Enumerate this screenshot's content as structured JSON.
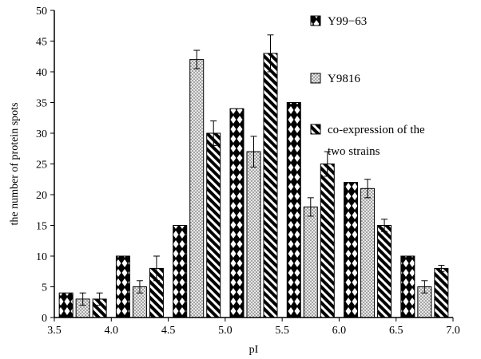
{
  "chart_data": {
    "type": "bar",
    "xlabel": "pI",
    "ylabel": "the number of protein spots",
    "xlim": [
      3.5,
      7.0
    ],
    "ylim": [
      0,
      50
    ],
    "x_ticks": [
      "3.5",
      "4.0",
      "4.5",
      "5.0",
      "5.5",
      "6.0",
      "6.5",
      "7.0"
    ],
    "y_ticks": [
      "0",
      "5",
      "10",
      "15",
      "20",
      "25",
      "30",
      "35",
      "40",
      "45",
      "50"
    ],
    "grid": false,
    "legend_position": "right",
    "groups": [
      3.75,
      4.25,
      4.75,
      5.25,
      5.75,
      6.25,
      6.75
    ],
    "series": [
      {
        "name": "Y99−63",
        "pattern": "diamond",
        "values": [
          4,
          10,
          15,
          34,
          35,
          22,
          10
        ],
        "errors": [
          0,
          0,
          0,
          0,
          0,
          0,
          0
        ]
      },
      {
        "name": "Y9816",
        "pattern": "dots",
        "values": [
          3,
          5,
          42,
          27,
          18,
          21,
          5
        ],
        "errors": [
          1,
          1,
          1.5,
          2.5,
          1.5,
          1.5,
          1
        ]
      },
      {
        "name": "co-expression of the two strains",
        "name_lines": [
          "co-expression of the",
          "two strains"
        ],
        "pattern": "diagonal",
        "values": [
          3,
          8,
          30,
          43,
          25,
          15,
          8
        ],
        "errors": [
          1,
          2,
          2,
          3,
          2,
          1,
          0.5
        ]
      }
    ]
  }
}
